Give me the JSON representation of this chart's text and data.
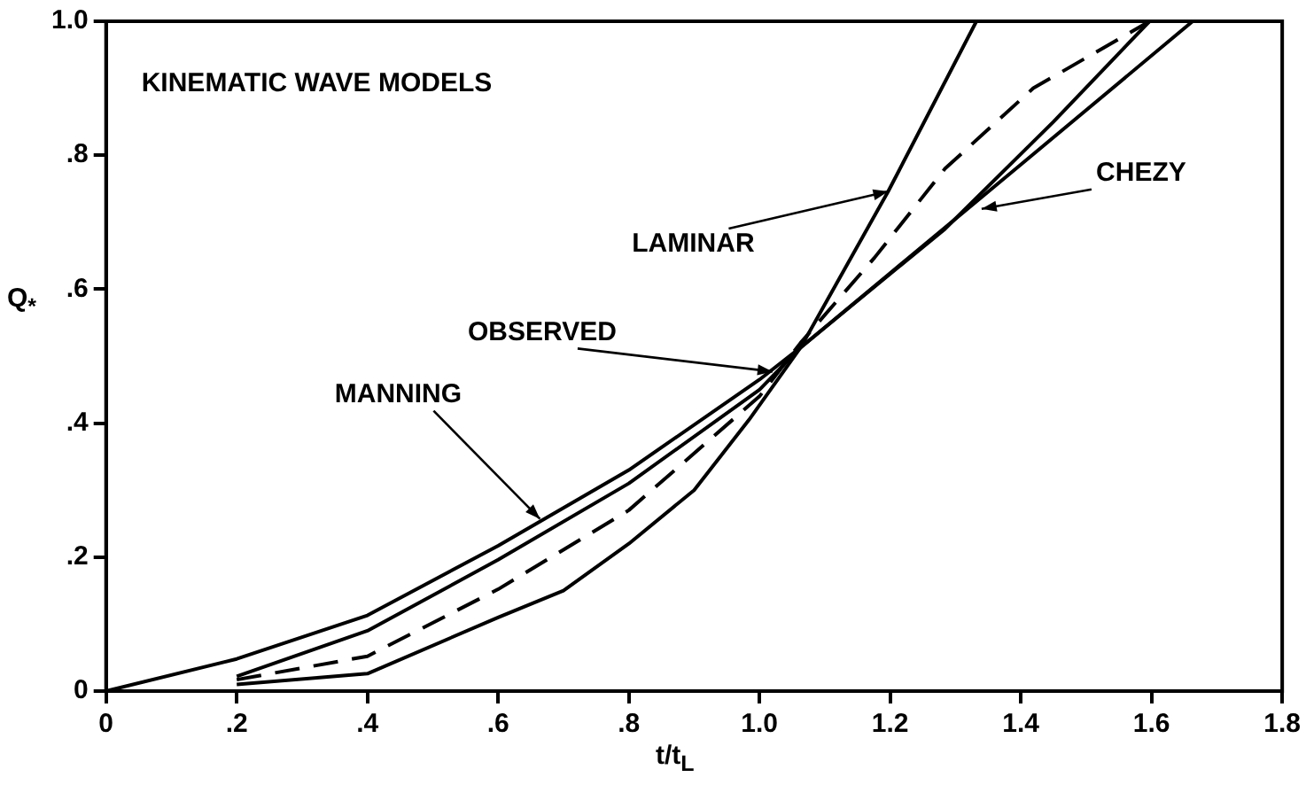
{
  "chart_data": {
    "type": "line",
    "title": "KINEMATIC WAVE MODELS",
    "xlabel": "t/t$_{L}$",
    "ylabel": "Q$_{*}$",
    "xlim": [
      0,
      1.8
    ],
    "ylim": [
      0,
      1.0
    ],
    "xticks": [
      0,
      {
        "value": 0.2,
        "label": ".2"
      },
      {
        "value": 0.4,
        "label": ".4"
      },
      {
        "value": 0.6,
        "label": ".6"
      },
      {
        "value": 0.8,
        "label": ".8"
      },
      {
        "value": 1.0,
        "label": "1.0"
      },
      {
        "value": 1.2,
        "label": "1.2"
      },
      {
        "value": 1.4,
        "label": "1.4"
      },
      {
        "value": 1.6,
        "label": "1.6"
      },
      {
        "value": 1.8,
        "label": "1.8"
      }
    ],
    "yticks": [
      0,
      {
        "value": 0.2,
        "label": ".2"
      },
      {
        "value": 0.4,
        "label": ".4"
      },
      {
        "value": 0.6,
        "label": ".6"
      },
      {
        "value": 0.8,
        "label": ".8"
      },
      {
        "value": 1.0,
        "label": "1.0"
      }
    ],
    "grid": false,
    "legend": false,
    "marker": "none",
    "series": [
      {
        "color": "#000000",
        "line_style": "solid",
        "x": [
          0,
          0.2,
          0.4,
          0.6,
          0.8,
          1.0,
          1.063,
          1.2,
          1.4,
          1.663
        ],
        "values": [
          0,
          0.048,
          0.113,
          0.217,
          0.33,
          0.465,
          0.513,
          0.624,
          0.786,
          1.0
        ]
      },
      {
        "color": "#000000",
        "line_style": "solid",
        "x": [
          0.2,
          0.4,
          0.6,
          0.8,
          1.0,
          1.063,
          1.284,
          1.45,
          1.597
        ],
        "values": [
          0.022,
          0.09,
          0.196,
          0.31,
          0.45,
          0.513,
          0.69,
          0.85,
          1.0
        ]
      },
      {
        "color": "#000000",
        "line_style": "dashed",
        "x": [
          0.2,
          0.4,
          0.6,
          0.8,
          1.0,
          1.063,
          1.176,
          1.284,
          1.419,
          1.597
        ],
        "values": [
          0.017,
          0.052,
          0.152,
          0.27,
          0.44,
          0.52,
          0.647,
          0.78,
          0.9,
          1.0
        ]
      },
      {
        "color": "#000000",
        "line_style": "solid",
        "x": [
          0.2,
          0.4,
          0.6,
          0.7,
          0.8,
          0.9,
          0.984,
          1.063,
          1.197,
          1.332
        ],
        "values": [
          0.01,
          0.026,
          0.11,
          0.15,
          0.22,
          0.3,
          0.405,
          0.513,
          0.746,
          1.0
        ]
      }
    ],
    "annotations": [
      {
        "text": "MANNING",
        "x": 0.664,
        "y": 0.257
      },
      {
        "text": "OBSERVED",
        "x": 1.02,
        "y": 0.477
      },
      {
        "text": "LAMINAR",
        "x": 1.197,
        "y": 0.746
      },
      {
        "text": "CHEZY",
        "x": 1.34,
        "y": 0.72
      }
    ]
  }
}
